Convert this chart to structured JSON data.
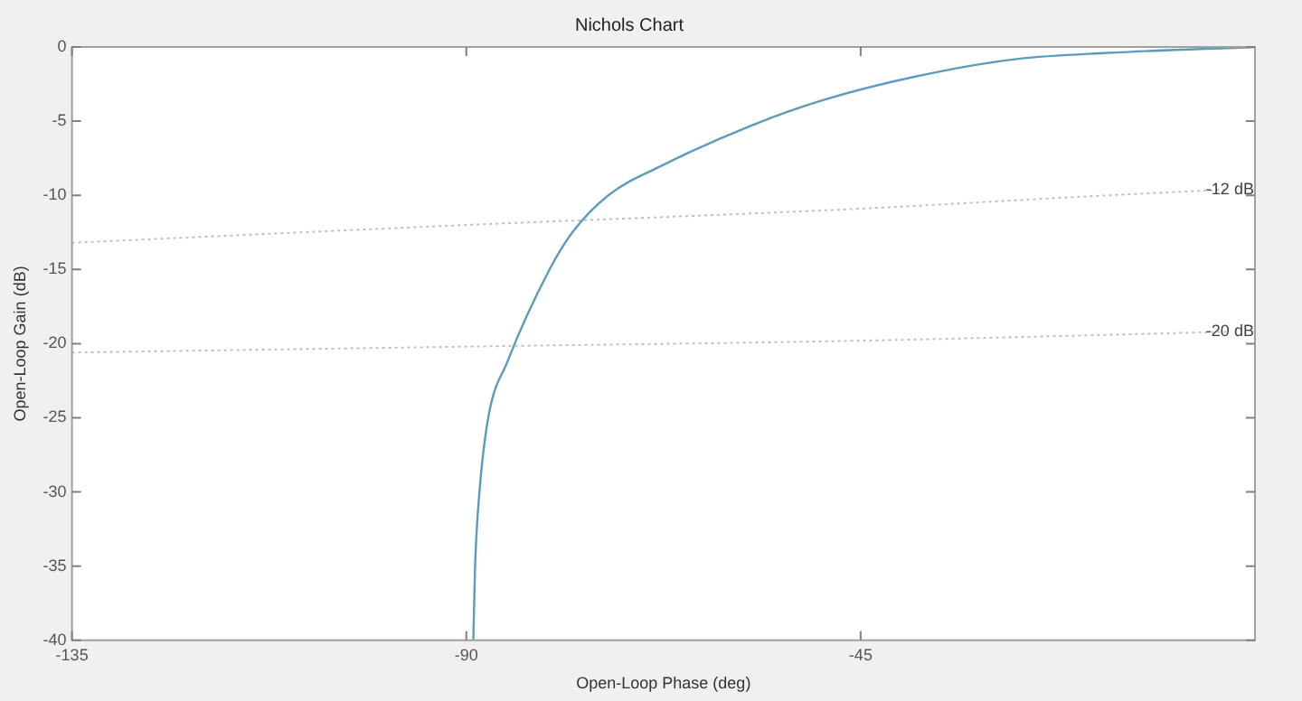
{
  "chart_data": {
    "type": "line",
    "title": "Nichols Chart",
    "xlabel": "Open-Loop Phase (deg)",
    "ylabel": "Open-Loop Gain (dB)",
    "xlim": [
      -135,
      0
    ],
    "xticks": [
      -135,
      -90,
      -45
    ],
    "ylim": [
      -40,
      0
    ],
    "yticks": [
      -40,
      -35,
      -30,
      -25,
      -20,
      -15,
      -10,
      -5,
      0
    ],
    "grid": false,
    "legend": false,
    "marker": "none",
    "line_style": "solid",
    "series": [
      {
        "color": "#5b9bbd",
        "x": [
          -89.2,
          -89,
          -88.5,
          -87.5,
          -85.3,
          -80.5,
          -77.9,
          -73.8,
          -67.7,
          -57.5,
          -49.4,
          -37.2,
          -27,
          -16.8,
          0
        ],
        "values": [
          -40,
          -35,
          -30,
          -25,
          -21.2,
          -15,
          -12.5,
          -10,
          -8,
          -5.3,
          -3.6,
          -1.8,
          -0.8,
          -0.4,
          0
        ]
      },
      {
        "color": "#c0c0c0",
        "line_style": "dotted",
        "x": [
          -135,
          -90,
          -45,
          -20,
          -3
        ],
        "values": [
          -13.2,
          -12,
          -10.9,
          -10.1,
          -9.6
        ]
      },
      {
        "color": "#c0c0c0",
        "line_style": "dotted",
        "x": [
          -135,
          -90,
          -45,
          -3
        ],
        "values": [
          -20.6,
          -20.2,
          -19.8,
          -19.2
        ]
      }
    ],
    "annotations": [
      {
        "text": "-12 dB",
        "x": -3,
        "y": -9.6
      },
      {
        "text": "-20 dB",
        "x": -3,
        "y": -19.2
      }
    ]
  }
}
